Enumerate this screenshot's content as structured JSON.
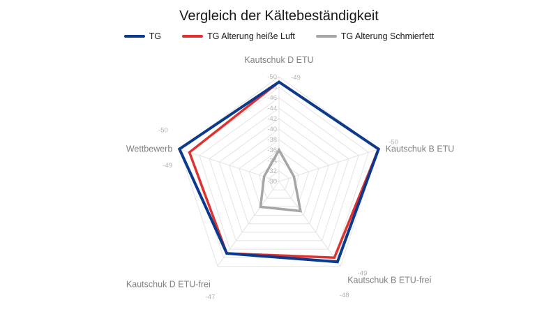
{
  "chart_data": {
    "type": "radar",
    "title": "Vergleich der Kältebeständigkeit",
    "axes": [
      "Kautschuk D ETU",
      "Kautschuk B ETU",
      "Kautschuk B ETU-frei",
      "Kautschuk D ETU-frei",
      "Wettbewerb"
    ],
    "range": [
      -30,
      -50
    ],
    "ticks": [
      -30,
      -32,
      -34,
      -36,
      -38,
      -40,
      -42,
      -44,
      -46,
      -48,
      -50
    ],
    "grid": true,
    "legend_position": "top",
    "series": [
      {
        "name": "TG",
        "color": "#0b3a8c",
        "values": [
          -49,
          -50,
          -49,
          -47,
          -50
        ]
      },
      {
        "name": "TG Alterung heiße Luft",
        "color": "#e03131",
        "values": [
          -49,
          -50,
          -48,
          -47,
          -48
        ]
      },
      {
        "name": "TG Alterung Schmierfett",
        "color": "#a6a6a6",
        "values": [
          -36,
          -33,
          -37,
          -36,
          -33
        ]
      }
    ],
    "value_labels": [
      "-49",
      "-50",
      "-49",
      "-48",
      "-47",
      "-49",
      "-50"
    ]
  }
}
